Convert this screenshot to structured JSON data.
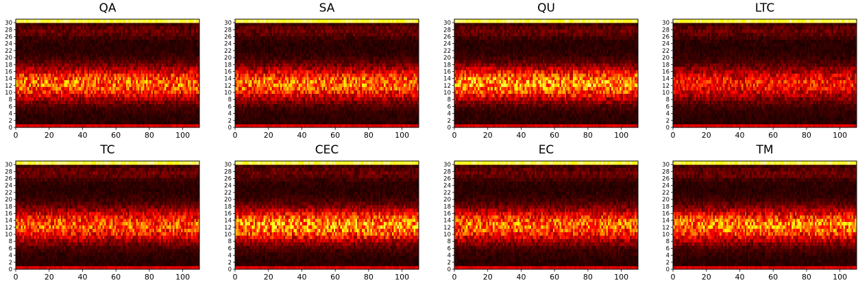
{
  "colors": {
    "colormap": "hot",
    "axis": "#000000",
    "background": "#ffffff"
  },
  "chart_data": [
    {
      "type": "heatmap",
      "title": "QA",
      "xlim": [
        0,
        110
      ],
      "ylim": [
        0,
        31
      ],
      "rows": 32,
      "cols": 110,
      "xticks": [
        "0",
        "20",
        "40",
        "60",
        "80",
        "100"
      ],
      "yticks": [
        "0",
        "2",
        "4",
        "6",
        "8",
        "10",
        "12",
        "14",
        "16",
        "18",
        "20",
        "22",
        "24",
        "26",
        "28",
        "30"
      ],
      "band_intensity": 0.45,
      "top_row_intensity": 0.9
    },
    {
      "type": "heatmap",
      "title": "SA",
      "xlim": [
        0,
        110
      ],
      "ylim": [
        0,
        31
      ],
      "rows": 32,
      "cols": 110,
      "xticks": [
        "0",
        "20",
        "40",
        "60",
        "80",
        "100"
      ],
      "yticks": [
        "0",
        "2",
        "4",
        "6",
        "8",
        "10",
        "12",
        "14",
        "16",
        "18",
        "20",
        "22",
        "24",
        "26",
        "28",
        "30"
      ],
      "band_intensity": 0.45,
      "top_row_intensity": 0.9
    },
    {
      "type": "heatmap",
      "title": "QU",
      "xlim": [
        0,
        110
      ],
      "ylim": [
        0,
        31
      ],
      "rows": 32,
      "cols": 110,
      "xticks": [
        "0",
        "20",
        "40",
        "60",
        "80",
        "100"
      ],
      "yticks": [
        "0",
        "2",
        "4",
        "6",
        "8",
        "10",
        "12",
        "14",
        "16",
        "18",
        "20",
        "22",
        "24",
        "26",
        "28",
        "30"
      ],
      "band_intensity": 0.52,
      "top_row_intensity": 0.9
    },
    {
      "type": "heatmap",
      "title": "LTC",
      "xlim": [
        0,
        110
      ],
      "ylim": [
        0,
        31
      ],
      "rows": 32,
      "cols": 110,
      "xticks": [
        "0",
        "20",
        "40",
        "60",
        "80",
        "100"
      ],
      "yticks": [
        "0",
        "2",
        "4",
        "6",
        "8",
        "10",
        "12",
        "14",
        "16",
        "18",
        "20",
        "22",
        "24",
        "26",
        "28",
        "30"
      ],
      "band_intensity": 0.33,
      "top_row_intensity": 0.9
    },
    {
      "type": "heatmap",
      "title": "TC",
      "xlim": [
        0,
        110
      ],
      "ylim": [
        0,
        31
      ],
      "rows": 32,
      "cols": 110,
      "xticks": [
        "0",
        "20",
        "40",
        "60",
        "80",
        "100"
      ],
      "yticks": [
        "0",
        "2",
        "4",
        "6",
        "8",
        "10",
        "12",
        "14",
        "16",
        "18",
        "20",
        "22",
        "24",
        "26",
        "28",
        "30"
      ],
      "band_intensity": 0.42,
      "top_row_intensity": 0.9
    },
    {
      "type": "heatmap",
      "title": "CEC",
      "xlim": [
        0,
        110
      ],
      "ylim": [
        0,
        31
      ],
      "rows": 32,
      "cols": 110,
      "xticks": [
        "0",
        "20",
        "40",
        "60",
        "80",
        "100"
      ],
      "yticks": [
        "0",
        "2",
        "4",
        "6",
        "8",
        "10",
        "12",
        "14",
        "16",
        "18",
        "20",
        "22",
        "24",
        "26",
        "28",
        "30"
      ],
      "band_intensity": 0.52,
      "top_row_intensity": 0.9
    },
    {
      "type": "heatmap",
      "title": "EC",
      "xlim": [
        0,
        110
      ],
      "ylim": [
        0,
        31
      ],
      "rows": 32,
      "cols": 110,
      "xticks": [
        "0",
        "20",
        "40",
        "60",
        "80",
        "100"
      ],
      "yticks": [
        "0",
        "2",
        "4",
        "6",
        "8",
        "10",
        "12",
        "14",
        "16",
        "18",
        "20",
        "22",
        "24",
        "26",
        "28",
        "30"
      ],
      "band_intensity": 0.45,
      "top_row_intensity": 0.9
    },
    {
      "type": "heatmap",
      "title": "TM",
      "xlim": [
        0,
        110
      ],
      "ylim": [
        0,
        31
      ],
      "rows": 32,
      "cols": 110,
      "xticks": [
        "0",
        "20",
        "40",
        "60",
        "80",
        "100"
      ],
      "yticks": [
        "0",
        "2",
        "4",
        "6",
        "8",
        "10",
        "12",
        "14",
        "16",
        "18",
        "20",
        "22",
        "24",
        "26",
        "28",
        "30"
      ],
      "band_intensity": 0.48,
      "top_row_intensity": 0.9
    }
  ]
}
